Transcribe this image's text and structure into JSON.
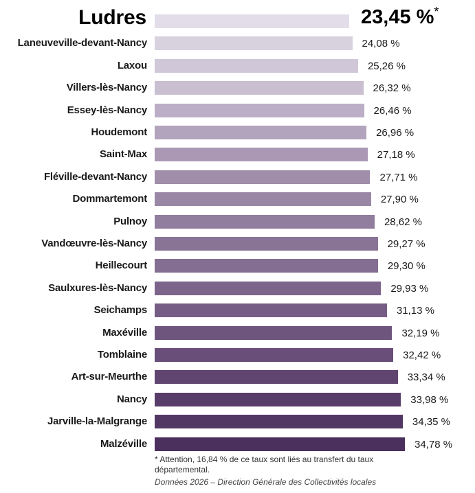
{
  "chart_data": {
    "type": "bar",
    "orientation": "horizontal",
    "title": "",
    "xlabel": "",
    "ylabel": "",
    "xlim": [
      0,
      35
    ],
    "grid": false,
    "categories": [
      "Ludres",
      "Laneuveville-devant-Nancy",
      "Laxou",
      "Villers-lès-Nancy",
      "Essey-lès-Nancy",
      "Houdemont",
      "Saint-Max",
      "Fléville-devant-Nancy",
      "Dommartemont",
      "Pulnoy",
      "Vandœuvre-lès-Nancy",
      "Heillecourt",
      "Saulxures-lès-Nancy",
      "Seichamps",
      "Maxéville",
      "Tomblaine",
      "Art-sur-Meurthe",
      "Nancy",
      "Jarville-la-Malgrange",
      "Malzéville"
    ],
    "values": [
      23.45,
      24.08,
      25.26,
      26.32,
      26.46,
      26.96,
      27.18,
      27.71,
      27.9,
      28.62,
      29.27,
      29.3,
      29.93,
      31.13,
      32.19,
      32.42,
      33.34,
      33.98,
      34.35,
      34.78
    ],
    "value_labels": [
      "23,45 %",
      "24,08 %",
      "25,26 %",
      "26,32 %",
      "26,46 %",
      "26,96 %",
      "27,18 %",
      "27,71 %",
      "27,90 %",
      "28,62 %",
      "29,27 %",
      "29,30 %",
      "29,93 %",
      "31,13 %",
      "32,19 %",
      "32,42 %",
      "33,34 %",
      "33,98 %",
      "34,35 %",
      "34,78 %"
    ],
    "highlight": {
      "category": "Ludres",
      "marker": "*"
    },
    "colors": [
      "#e2dde8",
      "#d8d1de",
      "#d0c7d8",
      "#c9bfd1",
      "#bcaec6",
      "#b3a4bd",
      "#aa98b4",
      "#a08eab",
      "#9a87a6",
      "#917d9d",
      "#897496",
      "#846e91",
      "#7c648a",
      "#765d85",
      "#6e557e",
      "#684e78",
      "#604571",
      "#583d6a",
      "#523764",
      "#4b2f5d"
    ]
  },
  "footnote": "* Attention, 16,84 % de ce taux sont liés au transfert du taux départemental.",
  "source": "Données 2026 – Direction Générale des Collectivités locales"
}
